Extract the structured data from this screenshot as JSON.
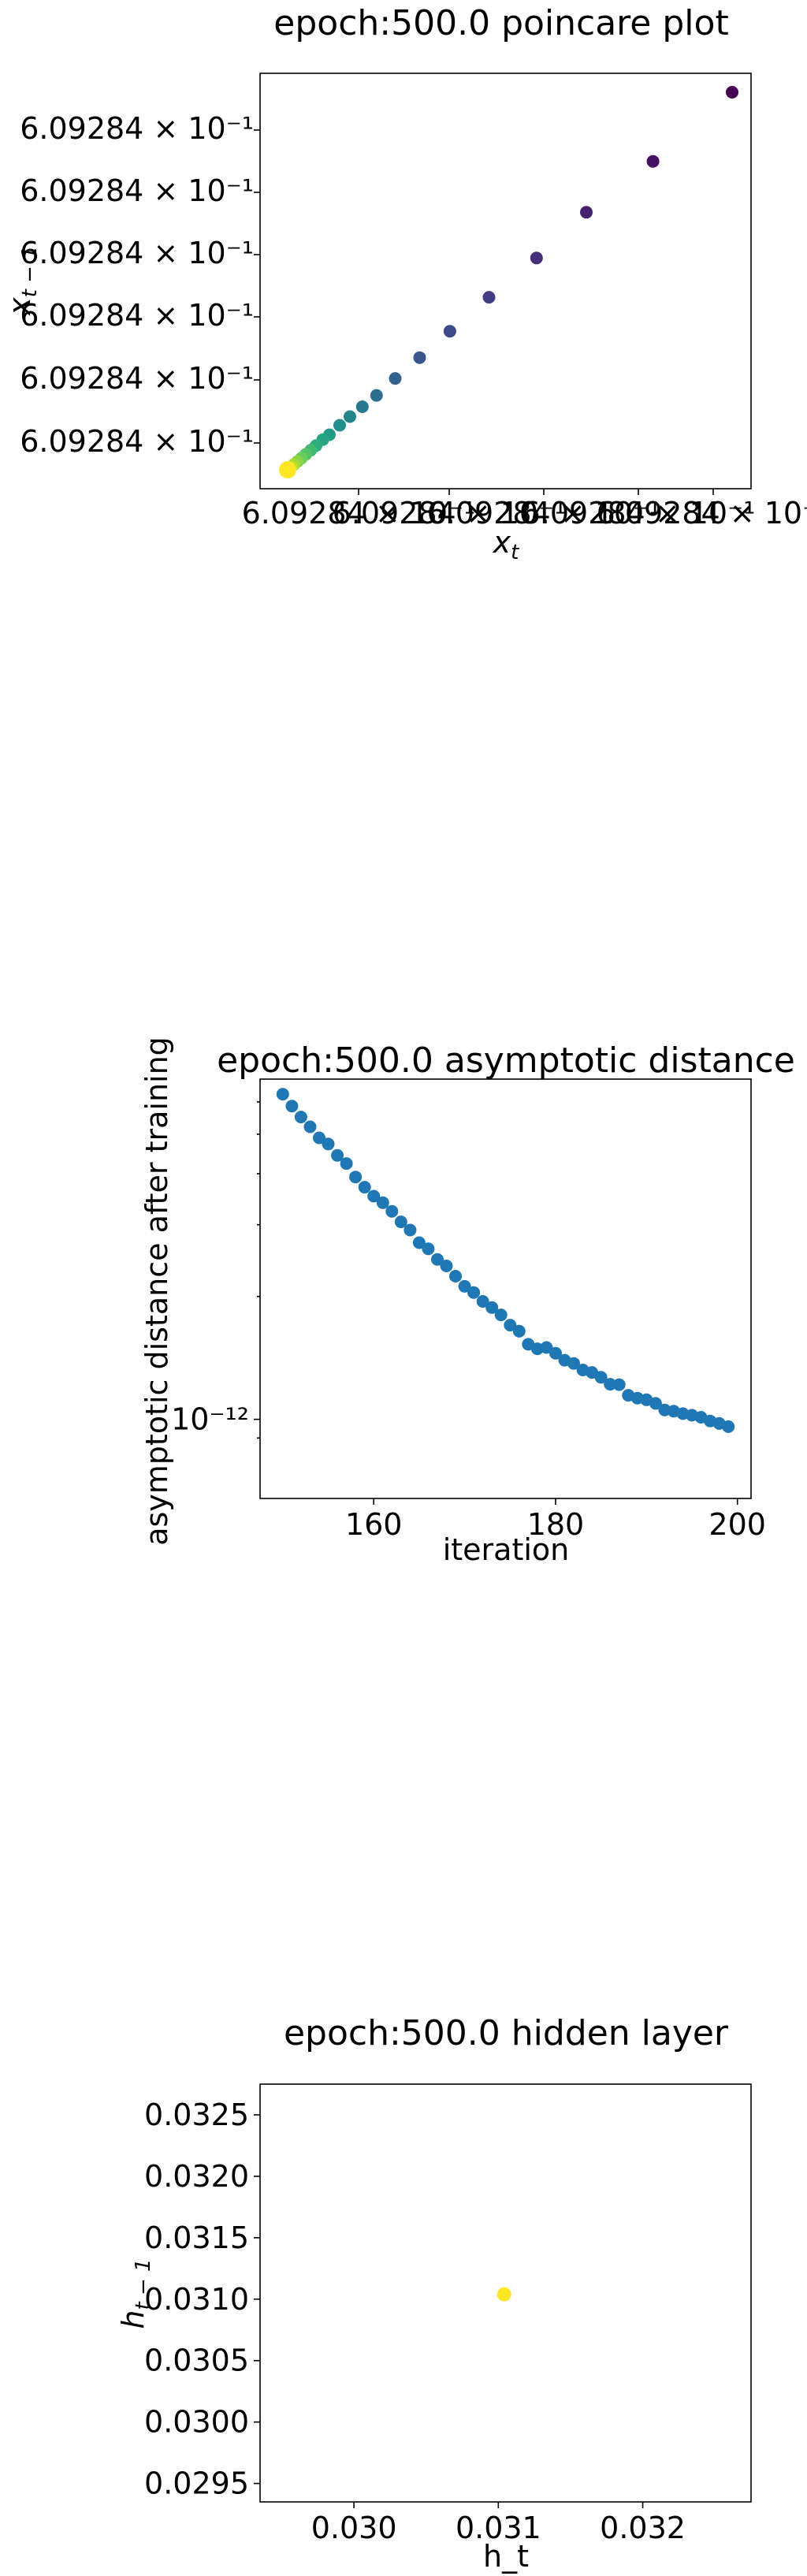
{
  "chart_data": [
    {
      "type": "scatter",
      "title": "epoch:500.0 poincare plot",
      "xlabel": "x_t",
      "ylabel": "x_{t-1}",
      "x_tick_labels": [
        "6.09284 × 10⁻¹",
        "6.09284 × 10⁻¹",
        "6.09284 × 10⁻¹",
        "6.09284 × 10⁻¹",
        "6.09284 × 10⁻¹"
      ],
      "y_tick_labels": [
        "6.09284 × 10⁻¹",
        "6.09284 × 10⁻¹",
        "6.09284 × 10⁻¹",
        "6.09284 × 10⁻¹",
        "6.09284 × 10⁻¹",
        "6.09284 × 10⁻¹"
      ],
      "colormap": "viridis",
      "points": [
        {
          "x": 1.0,
          "y": 1.0
        },
        {
          "x": 0.822,
          "y": 0.817
        },
        {
          "x": 0.672,
          "y": 0.682
        },
        {
          "x": 0.56,
          "y": 0.561
        },
        {
          "x": 0.453,
          "y": 0.457
        },
        {
          "x": 0.365,
          "y": 0.367
        },
        {
          "x": 0.297,
          "y": 0.297
        },
        {
          "x": 0.242,
          "y": 0.242
        },
        {
          "x": 0.2,
          "y": 0.197
        },
        {
          "x": 0.168,
          "y": 0.167
        },
        {
          "x": 0.14,
          "y": 0.141
        },
        {
          "x": 0.117,
          "y": 0.118
        },
        {
          "x": 0.094,
          "y": 0.093
        },
        {
          "x": 0.079,
          "y": 0.08
        },
        {
          "x": 0.064,
          "y": 0.064
        },
        {
          "x": 0.052,
          "y": 0.052
        },
        {
          "x": 0.041,
          "y": 0.041
        },
        {
          "x": 0.031,
          "y": 0.031
        },
        {
          "x": 0.022,
          "y": 0.022
        },
        {
          "x": 0.014,
          "y": 0.014
        },
        {
          "x": 0.008,
          "y": 0.008
        },
        {
          "x": 0.003,
          "y": 0.003
        },
        {
          "x": 0.0,
          "y": 0.0
        }
      ]
    },
    {
      "type": "scatter",
      "title": "epoch:500.0 asymptotic distance",
      "xlabel": "iteration",
      "ylabel": "asymptotic distance after training",
      "yscale": "log",
      "xlim": [
        147.5,
        201.5
      ],
      "ylim_exp": [
        -12.194,
        -11.166
      ],
      "x_ticks": [
        160,
        180,
        200
      ],
      "y_tick_label": "10⁻¹²",
      "y_tick_value_exp": -12,
      "color": "#1f77b4",
      "x": [
        150,
        151,
        152,
        153,
        154,
        155,
        156,
        157,
        158,
        159,
        160,
        161,
        162,
        163,
        164,
        165,
        166,
        167,
        168,
        169,
        170,
        171,
        172,
        173,
        174,
        175,
        176,
        177,
        178,
        179,
        180,
        181,
        182,
        183,
        184,
        185,
        186,
        187,
        188,
        189,
        190,
        191,
        192,
        193,
        194,
        195,
        196,
        197,
        198,
        199
      ],
      "y_log10": [
        -11.203,
        -11.232,
        -11.259,
        -11.283,
        -11.31,
        -11.325,
        -11.353,
        -11.373,
        -11.406,
        -11.431,
        -11.453,
        -11.469,
        -11.49,
        -11.516,
        -11.536,
        -11.567,
        -11.582,
        -11.608,
        -11.624,
        -11.649,
        -11.674,
        -11.689,
        -11.711,
        -11.726,
        -11.744,
        -11.769,
        -11.784,
        -11.816,
        -11.827,
        -11.824,
        -11.838,
        -11.855,
        -11.863,
        -11.879,
        -11.885,
        -11.897,
        -11.914,
        -11.915,
        -11.941,
        -11.948,
        -11.952,
        -11.961,
        -11.977,
        -11.98,
        -11.986,
        -11.99,
        -11.995,
        -12.004,
        -12.01,
        -12.018
      ]
    },
    {
      "type": "scatter",
      "title": "epoch:500.0 hidden layer",
      "xlabel": "h_t",
      "ylabel": "h_{t-1}",
      "xlim": [
        0.02935,
        0.03275
      ],
      "ylim": [
        0.02935,
        0.03275
      ],
      "x_ticks": [
        0.03,
        0.031,
        0.032
      ],
      "x_tick_labels": [
        "0.030",
        "0.031",
        "0.032"
      ],
      "y_ticks": [
        0.0295,
        0.03,
        0.0305,
        0.031,
        0.0315,
        0.032,
        0.0325
      ],
      "y_tick_labels": [
        "0.0295",
        "0.0300",
        "0.0305",
        "0.0310",
        "0.0315",
        "0.0320",
        "0.0325"
      ],
      "color": "#fde725",
      "x": [
        0.03104
      ],
      "y": [
        0.03104
      ]
    }
  ]
}
